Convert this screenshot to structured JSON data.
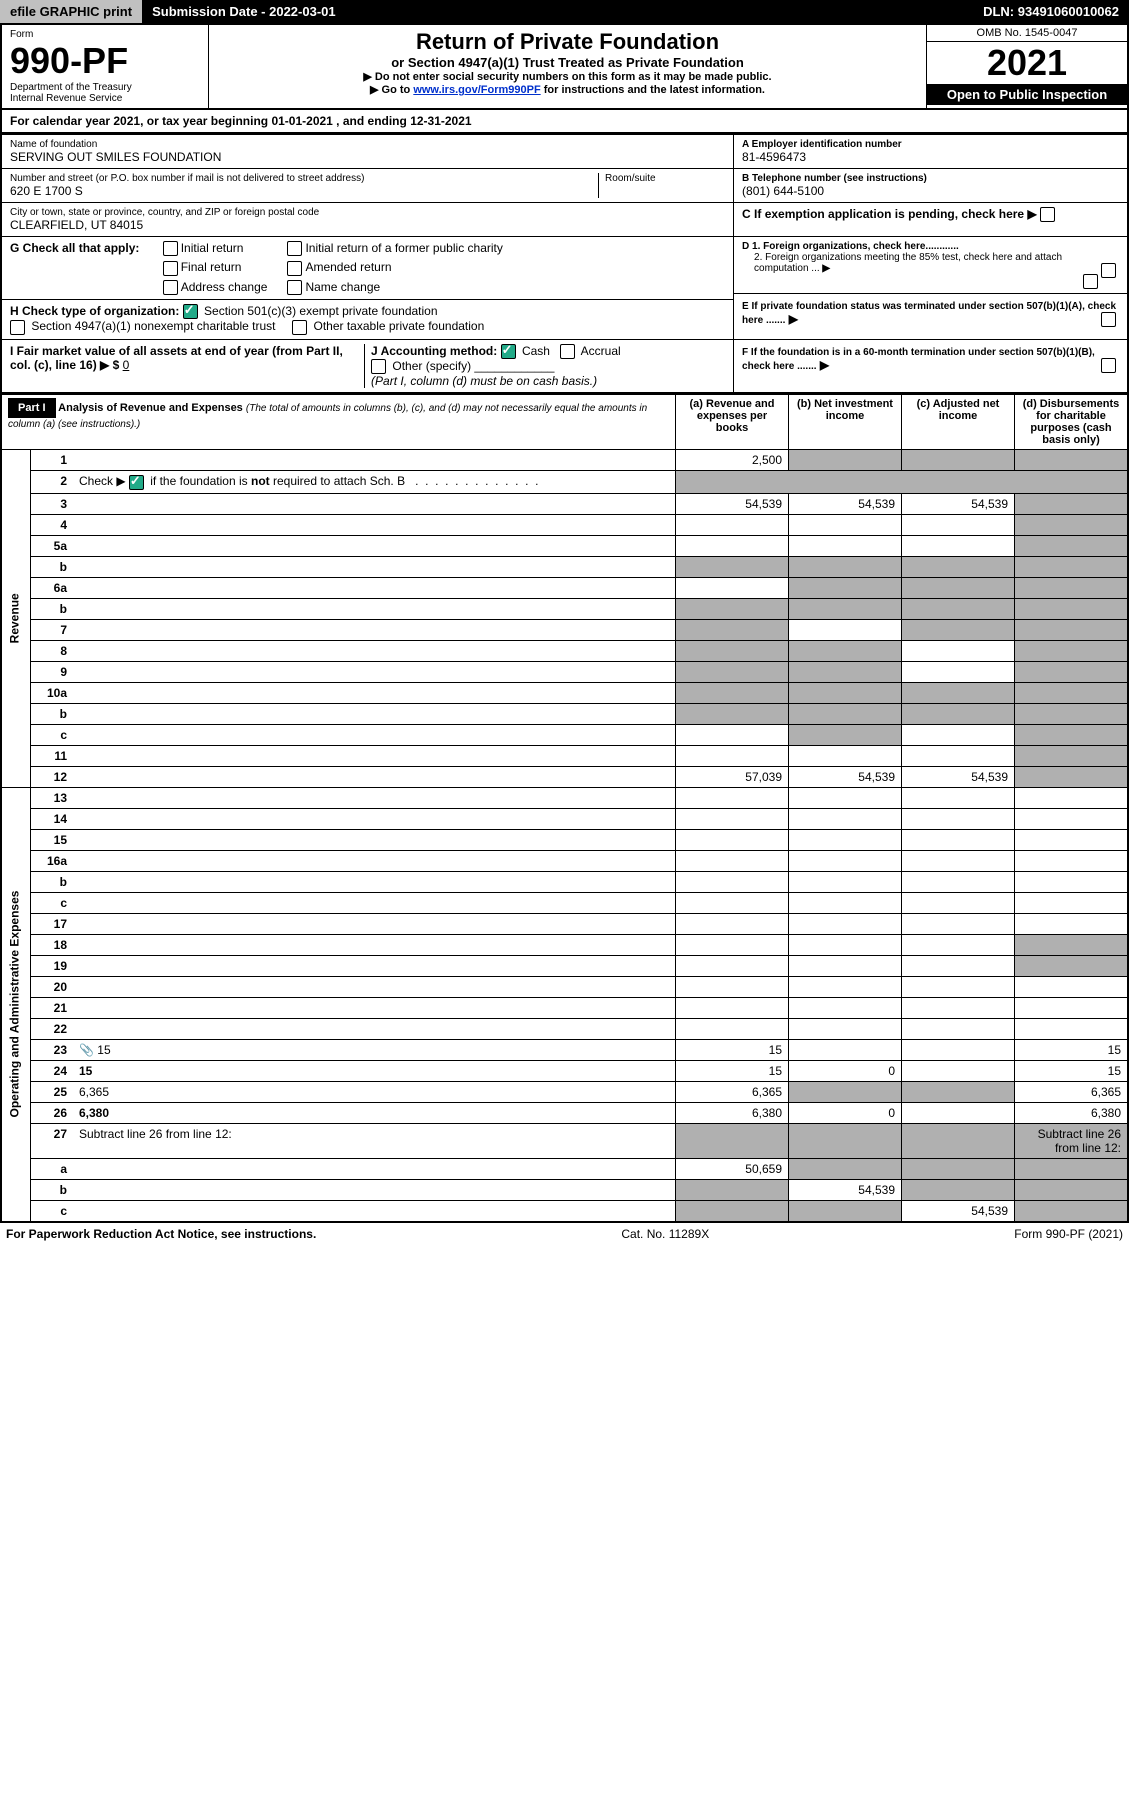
{
  "topbar": {
    "left": "efile GRAPHIC print",
    "mid_label": "Submission Date - ",
    "mid_date": "2022-03-01",
    "right_label": "DLN: ",
    "right_value": "93491060010062"
  },
  "header": {
    "form_word": "Form",
    "form_number": "990-PF",
    "dept": "Department of the Treasury",
    "irs": "Internal Revenue Service",
    "title": "Return of Private Foundation",
    "subtitle": "or Section 4947(a)(1) Trust Treated as Private Foundation",
    "note1": "▶ Do not enter social security numbers on this form as it may be made public.",
    "note2a": "▶ Go to ",
    "note2_link": "www.irs.gov/Form990PF",
    "note2b": " for instructions and the latest information.",
    "omb": "OMB No. 1545-0047",
    "year": "2021",
    "open": "Open to Public Inspection"
  },
  "calyear": {
    "prefix": "For calendar year 2021, or tax year beginning ",
    "begin": "01-01-2021",
    "mid": " , and ending ",
    "end": "12-31-2021"
  },
  "ident": {
    "name_label": "Name of foundation",
    "name": "SERVING OUT SMILES FOUNDATION",
    "a_label": "A Employer identification number",
    "a_val": "81-4596473",
    "addr_label": "Number and street (or P.O. box number if mail is not delivered to street address)",
    "addr": "620 E 1700 S",
    "room_label": "Room/suite",
    "b_label": "B Telephone number (see instructions)",
    "b_val": "(801) 644-5100",
    "city_label": "City or town, state or province, country, and ZIP or foreign postal code",
    "city": "CLEARFIELD, UT  84015",
    "c_label": "C If exemption application is pending, check here"
  },
  "g": {
    "label": "G Check all that apply:",
    "opts": [
      "Initial return",
      "Final return",
      "Address change",
      "Initial return of a former public charity",
      "Amended return",
      "Name change"
    ]
  },
  "d": {
    "d1": "D 1. Foreign organizations, check here............",
    "d2": "2. Foreign organizations meeting the 85% test, check here and attach computation ..."
  },
  "h": {
    "label": "H Check type of organization:",
    "o1": "Section 501(c)(3) exempt private foundation",
    "o2": "Section 4947(a)(1) nonexempt charitable trust",
    "o3": "Other taxable private foundation"
  },
  "e_label": "E  If private foundation status was terminated under section 507(b)(1)(A), check here .......",
  "i": {
    "label": "I Fair market value of all assets at end of year (from Part II, col. (c), line 16) ▶ $",
    "val": "0"
  },
  "j": {
    "label": "J Accounting method:",
    "o1": "Cash",
    "o2": "Accrual",
    "o3": "Other (specify)",
    "note": "(Part I, column (d) must be on cash basis.)"
  },
  "f_label": "F  If the foundation is in a 60-month termination under section 507(b)(1)(B), check here .......",
  "part1": {
    "label": "Part I",
    "title": "Analysis of Revenue and Expenses",
    "title_note": " (The total of amounts in columns (b), (c), and (d) may not necessarily equal the amounts in column (a) (see instructions).)",
    "col_a": "(a)  Revenue and expenses per books",
    "col_b": "(b)  Net investment income",
    "col_c": "(c)  Adjusted net income",
    "col_d": "(d)  Disbursements for charitable purposes (cash basis only)"
  },
  "sections": {
    "revenue": "Revenue",
    "opex": "Operating and Administrative Expenses"
  },
  "rows": [
    {
      "n": "1",
      "d": "",
      "a": "2,500",
      "b": "",
      "c": "",
      "sb": true,
      "sc": true,
      "sd": true
    },
    {
      "n": "2",
      "d": "Check ▶ ☑ if the foundation is not required to attach Sch. B",
      "nocol": true
    },
    {
      "n": "3",
      "d": "",
      "a": "54,539",
      "b": "54,539",
      "c": "54,539",
      "sd": true
    },
    {
      "n": "4",
      "d": "",
      "a": "",
      "b": "",
      "c": "",
      "sd": true
    },
    {
      "n": "5a",
      "d": "",
      "a": "",
      "b": "",
      "c": "",
      "sd": true
    },
    {
      "n": "b",
      "d": "",
      "a": "",
      "b": "",
      "c": "",
      "sa": true,
      "sb": true,
      "sc": true,
      "sd": true
    },
    {
      "n": "6a",
      "d": "",
      "a": "",
      "b": "",
      "c": "",
      "sb": true,
      "sc": true,
      "sd": true
    },
    {
      "n": "b",
      "d": "",
      "a": "",
      "b": "",
      "c": "",
      "sa": true,
      "sb": true,
      "sc": true,
      "sd": true
    },
    {
      "n": "7",
      "d": "",
      "a": "",
      "b": "",
      "c": "",
      "sa": true,
      "sc": true,
      "sd": true
    },
    {
      "n": "8",
      "d": "",
      "a": "",
      "b": "",
      "c": "",
      "sa": true,
      "sb": true,
      "sd": true
    },
    {
      "n": "9",
      "d": "",
      "a": "",
      "b": "",
      "c": "",
      "sa": true,
      "sb": true,
      "sd": true
    },
    {
      "n": "10a",
      "d": "",
      "a": "",
      "b": "",
      "c": "",
      "sa": true,
      "sb": true,
      "sc": true,
      "sd": true
    },
    {
      "n": "b",
      "d": "",
      "a": "",
      "b": "",
      "c": "",
      "sa": true,
      "sb": true,
      "sc": true,
      "sd": true
    },
    {
      "n": "c",
      "d": "",
      "a": "",
      "b": "",
      "c": "",
      "sb": true,
      "sd": true
    },
    {
      "n": "11",
      "d": "",
      "a": "",
      "b": "",
      "c": "",
      "sd": true
    },
    {
      "n": "12",
      "d": "",
      "a": "57,039",
      "b": "54,539",
      "c": "54,539",
      "bold": true,
      "sd": true
    },
    {
      "n": "13",
      "d": "",
      "a": "",
      "b": "",
      "c": ""
    },
    {
      "n": "14",
      "d": "",
      "a": "",
      "b": "",
      "c": ""
    },
    {
      "n": "15",
      "d": "",
      "a": "",
      "b": "",
      "c": ""
    },
    {
      "n": "16a",
      "d": "",
      "a": "",
      "b": "",
      "c": ""
    },
    {
      "n": "b",
      "d": "",
      "a": "",
      "b": "",
      "c": ""
    },
    {
      "n": "c",
      "d": "",
      "a": "",
      "b": "",
      "c": ""
    },
    {
      "n": "17",
      "d": "",
      "a": "",
      "b": "",
      "c": ""
    },
    {
      "n": "18",
      "d": "",
      "a": "",
      "b": "",
      "c": "",
      "sd": true
    },
    {
      "n": "19",
      "d": "",
      "a": "",
      "b": "",
      "c": "",
      "sd": true
    },
    {
      "n": "20",
      "d": "",
      "a": "",
      "b": "",
      "c": ""
    },
    {
      "n": "21",
      "d": "",
      "a": "",
      "b": "",
      "c": ""
    },
    {
      "n": "22",
      "d": "",
      "a": "",
      "b": "",
      "c": ""
    },
    {
      "n": "23",
      "d": "15",
      "a": "15",
      "b": "",
      "c": "",
      "icon": true
    },
    {
      "n": "24",
      "d": "15",
      "a": "15",
      "b": "0",
      "c": "",
      "bold": true
    },
    {
      "n": "25",
      "d": "6,365",
      "a": "6,365",
      "b": "",
      "c": "",
      "sb": true,
      "sc": true
    },
    {
      "n": "26",
      "d": "6,380",
      "a": "6,380",
      "b": "0",
      "c": "",
      "bold": true
    },
    {
      "n": "27",
      "d": "Subtract line 26 from line 12:",
      "nocol2": true,
      "sa": true,
      "sb": true,
      "sc": true,
      "sd": true
    },
    {
      "n": "a",
      "d": "",
      "a": "50,659",
      "b": "",
      "c": "",
      "bold": true,
      "sb": true,
      "sc": true,
      "sd": true
    },
    {
      "n": "b",
      "d": "",
      "a": "",
      "b": "54,539",
      "c": "",
      "bold": true,
      "sa": true,
      "sc": true,
      "sd": true
    },
    {
      "n": "c",
      "d": "",
      "a": "",
      "b": "",
      "c": "54,539",
      "bold": true,
      "sa": true,
      "sb": true,
      "sd": true
    }
  ],
  "footer": {
    "left": "For Paperwork Reduction Act Notice, see instructions.",
    "mid": "Cat. No. 11289X",
    "right": "Form 990-PF (2021)"
  }
}
